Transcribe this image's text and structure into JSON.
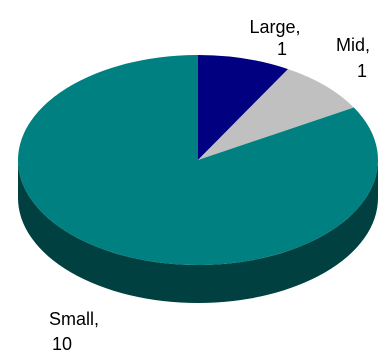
{
  "chart_data": {
    "type": "pie",
    "style": "3d",
    "slices": [
      {
        "label": "Large",
        "value": 1,
        "color": "#000080"
      },
      {
        "label": "Mid",
        "value": 1,
        "color": "#c0c0c0"
      },
      {
        "label": "Small",
        "value": 10,
        "color": "#008080"
      }
    ],
    "side_colors": {
      "Large": "#000040",
      "Mid": "#808080",
      "Small": "#004040"
    },
    "data_labels": [
      {
        "slice": "Large",
        "name_line": "Large,",
        "value_line": "1"
      },
      {
        "slice": "Mid",
        "name_line": "Mid,",
        "value_line": "1"
      },
      {
        "slice": "Small",
        "name_line": "Small,",
        "value_line": "10"
      }
    ],
    "start_angle": "12 o'clock",
    "direction": "clockwise",
    "legend": "none",
    "title": ""
  }
}
